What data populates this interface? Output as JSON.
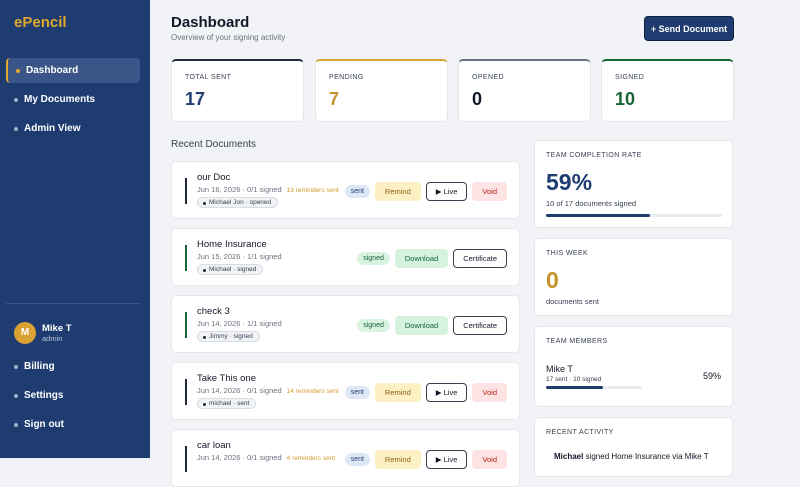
{
  "sidebar": {
    "logo": "ePencil",
    "nav": [
      "Dashboard",
      "My Documents",
      "Admin View"
    ],
    "user": {
      "initial": "M",
      "name": "Mike T",
      "role": "admin"
    },
    "footer_nav": [
      "Billing",
      "Settings",
      "Sign out"
    ]
  },
  "header": {
    "title": "Dashboard",
    "subtitle": "Overview of your signing activity",
    "button": "+ Send Document"
  },
  "stats": [
    {
      "label": "TOTAL SENT",
      "value": "17"
    },
    {
      "label": "PENDING",
      "value": "7"
    },
    {
      "label": "OPENED",
      "value": "0"
    },
    {
      "label": "SIGNED",
      "value": "10"
    }
  ],
  "recent_documents": {
    "title": "Recent Documents",
    "docs": [
      {
        "title": "our Doc",
        "meta": "Jun 16, 2026 · 0/1 signed",
        "reminders": "13 reminders sent",
        "signer": "Michael Jon · opened",
        "status": "sent",
        "actions": [
          "Remind",
          "▶ Live",
          "Void"
        ]
      },
      {
        "title": "Home Insurance",
        "meta": "Jun 15, 2026 · 1/1 signed",
        "signer": "Michael · signed",
        "status": "signed",
        "actions": [
          "Download",
          "Certificate"
        ]
      },
      {
        "title": "check 3",
        "meta": "Jun 14, 2026 · 1/1 signed",
        "signer": "Jimmy · signed",
        "status": "signed",
        "actions": [
          "Download",
          "Certificate"
        ]
      },
      {
        "title": "Take This one",
        "meta": "Jun 14, 2026 · 0/1 signed",
        "reminders": "14 reminders sent",
        "signer": "michael · sent",
        "status": "sent",
        "actions": [
          "Remind",
          "▶ Live",
          "Void"
        ]
      },
      {
        "title": "car loan",
        "meta": "Jun 14, 2026 · 0/1 signed",
        "reminders": "4 reminders sent",
        "status": "sent",
        "actions": [
          "Remind",
          "▶ Live",
          "Void"
        ]
      }
    ]
  },
  "completion": {
    "title": "TEAM COMPLETION RATE",
    "value": "59%",
    "detail": "10 of 17 documents signed"
  },
  "this_week": {
    "title": "THIS WEEK",
    "value": "0",
    "detail": "documents sent"
  },
  "team_members": {
    "title": "TEAM MEMBERS",
    "members": [
      {
        "name": "Mike T",
        "detail": "17 sent · 10 signed",
        "rate": "59%"
      }
    ]
  },
  "recent_activity": {
    "title": "RECENT ACTIVITY",
    "items": [
      {
        "actor": "Michael",
        "text": "signed Home Insurance via Mike T"
      }
    ]
  }
}
